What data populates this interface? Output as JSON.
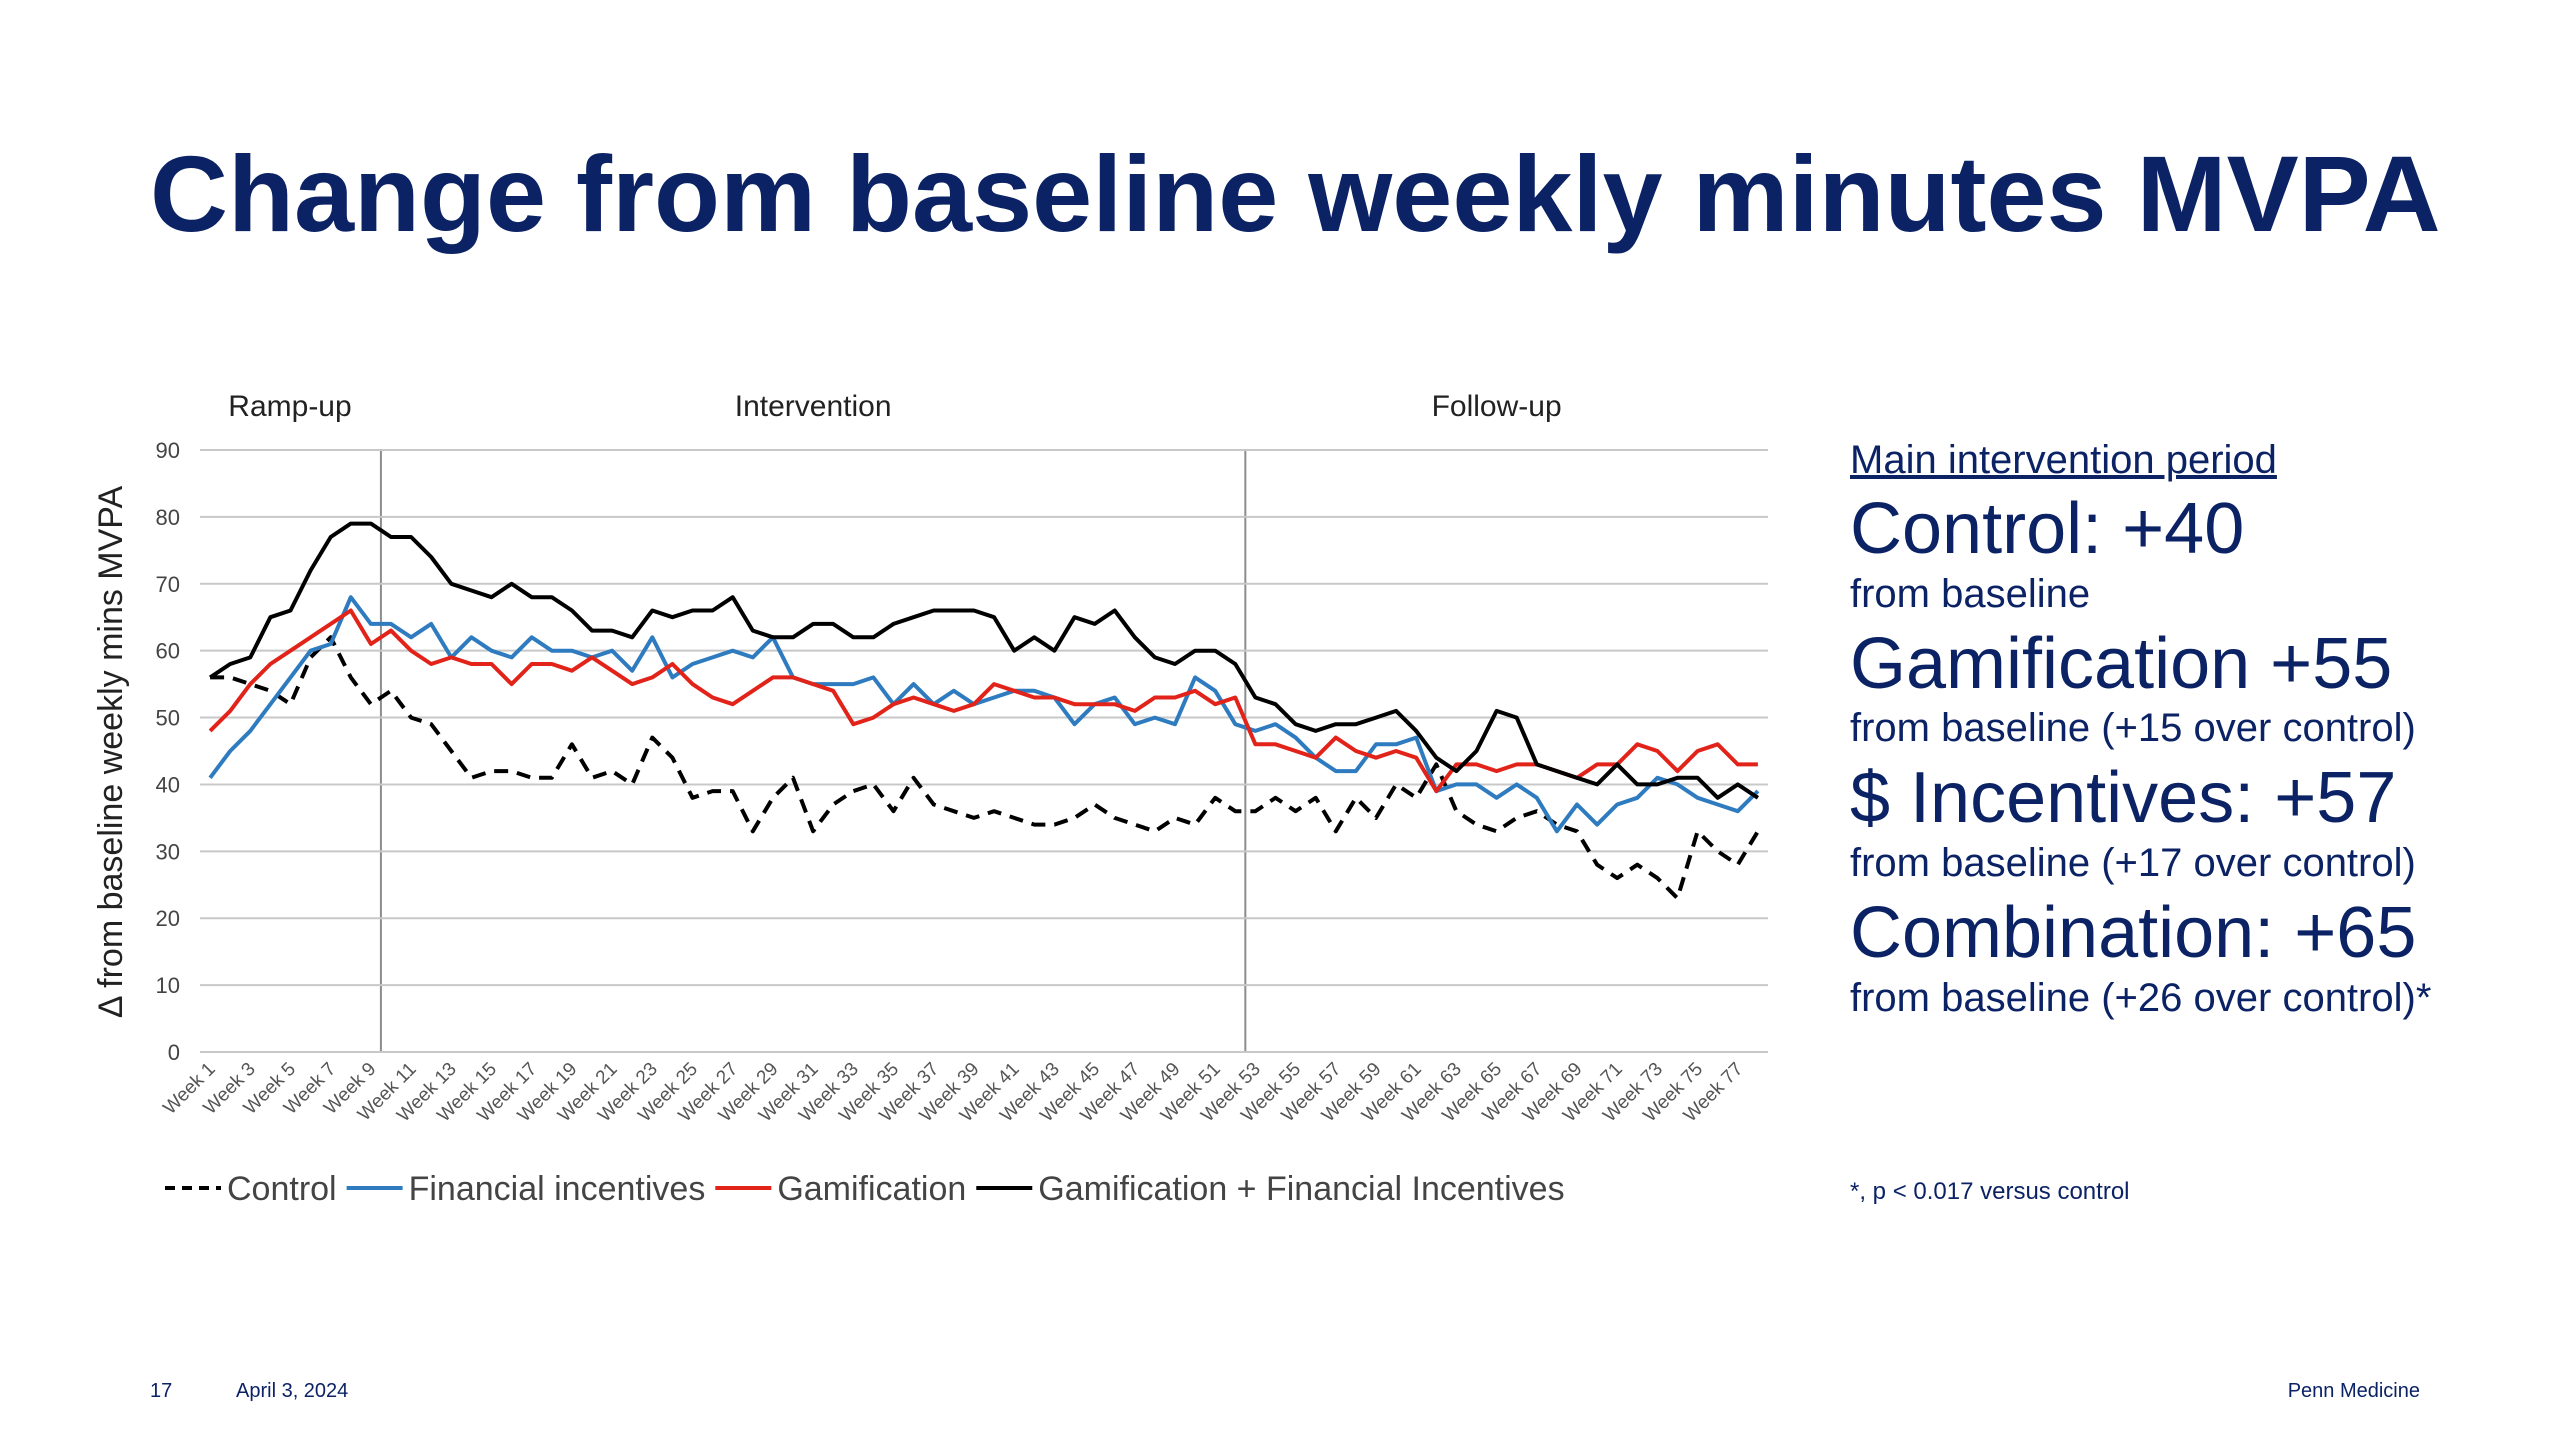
{
  "slide": {
    "title": "Change from baseline weekly minutes MVPA",
    "page_number": "17",
    "date": "April 3, 2024",
    "brand": "Penn Medicine",
    "footnote": "*, p < 0.017 versus control"
  },
  "panel": {
    "heading": "Main intervention period",
    "items": [
      {
        "main": "Control: +40",
        "sub": "from baseline"
      },
      {
        "main": "Gamification +55",
        "sub": "from baseline (+15 over control)"
      },
      {
        "main": "$ Incentives: +57",
        "sub": "from baseline (+17 over control)"
      },
      {
        "main": "Combination: +65",
        "sub": "from baseline (+26 over control)*"
      }
    ]
  },
  "chart_data": {
    "type": "line",
    "title": "",
    "ylabel": "Δ from baseline weekly mins MVPA",
    "xlabel": "",
    "ylim": [
      0,
      90
    ],
    "yticks": [
      0,
      10,
      20,
      30,
      40,
      50,
      60,
      70,
      80,
      90
    ],
    "grid": true,
    "legend_position": "bottom",
    "phases": [
      {
        "label": "Ramp-up",
        "start_week": 1,
        "end_week": 10
      },
      {
        "label": "Intervention",
        "start_week": 10,
        "end_week": 53
      },
      {
        "label": "Follow-up",
        "start_week": 53,
        "end_week": 78
      }
    ],
    "x_tick_labels": [
      "Week 1",
      "Week 3",
      "Week 5",
      "Week 7",
      "Week 9",
      "Week 11",
      "Week 13",
      "Week 15",
      "Week 17",
      "Week 19",
      "Week 21",
      "Week 23",
      "Week 25",
      "Week 27",
      "Week 29",
      "Week 31",
      "Week 33",
      "Week 35",
      "Week 37",
      "Week 39",
      "Week 41",
      "Week 43",
      "Week 45",
      "Week 47",
      "Week 49",
      "Week 51",
      "Week 53",
      "Week 55",
      "Week 57",
      "Week 59",
      "Week 61",
      "Week 63",
      "Week 65",
      "Week 67",
      "Week 69",
      "Week 71",
      "Week 73",
      "Week 75",
      "Week 77"
    ],
    "weeks": [
      1,
      2,
      3,
      4,
      5,
      6,
      7,
      8,
      9,
      10,
      11,
      12,
      13,
      14,
      15,
      16,
      17,
      18,
      19,
      20,
      21,
      22,
      23,
      24,
      25,
      26,
      27,
      28,
      29,
      30,
      31,
      32,
      33,
      34,
      35,
      36,
      37,
      38,
      39,
      40,
      41,
      42,
      43,
      44,
      45,
      46,
      47,
      48,
      49,
      50,
      51,
      52,
      53,
      54,
      55,
      56,
      57,
      58,
      59,
      60,
      61,
      62,
      63,
      64,
      65,
      66,
      67,
      68,
      69,
      70,
      71,
      72,
      73,
      74,
      75,
      76,
      77,
      78
    ],
    "series": [
      {
        "name": "Control",
        "color": "#000000",
        "dash": true,
        "values": [
          56,
          56,
          55,
          54,
          52,
          59,
          62,
          56,
          52,
          54,
          50,
          49,
          45,
          41,
          42,
          42,
          41,
          41,
          46,
          41,
          42,
          40,
          47,
          44,
          38,
          39,
          39,
          33,
          38,
          41,
          33,
          37,
          39,
          40,
          36,
          41,
          37,
          36,
          35,
          36,
          35,
          34,
          34,
          35,
          37,
          35,
          34,
          33,
          35,
          34,
          38,
          36,
          36,
          38,
          36,
          38,
          33,
          38,
          35,
          40,
          38,
          43,
          36,
          34,
          33,
          35,
          36,
          34,
          33,
          28,
          26,
          28,
          26,
          23,
          33,
          30,
          28,
          33
        ]
      },
      {
        "name": "Financial incentives",
        "color": "#2e7bbf",
        "dash": false,
        "values": [
          41,
          45,
          48,
          52,
          56,
          60,
          61,
          68,
          64,
          64,
          62,
          64,
          59,
          62,
          60,
          59,
          62,
          60,
          60,
          59,
          60,
          57,
          62,
          56,
          58,
          59,
          60,
          59,
          62,
          56,
          55,
          55,
          55,
          56,
          52,
          55,
          52,
          54,
          52,
          53,
          54,
          54,
          53,
          49,
          52,
          53,
          49,
          50,
          49,
          56,
          54,
          49,
          48,
          49,
          47,
          44,
          42,
          42,
          46,
          46,
          47,
          39,
          40,
          40,
          38,
          40,
          38,
          33,
          37,
          34,
          37,
          38,
          41,
          40,
          38,
          37,
          36,
          39
        ]
      },
      {
        "name": "Gamification",
        "color": "#e2231a",
        "dash": false,
        "values": [
          48,
          51,
          55,
          58,
          60,
          62,
          64,
          66,
          61,
          63,
          60,
          58,
          59,
          58,
          58,
          55,
          58,
          58,
          57,
          59,
          57,
          55,
          56,
          58,
          55,
          53,
          52,
          54,
          56,
          56,
          55,
          54,
          49,
          50,
          52,
          53,
          52,
          51,
          52,
          55,
          54,
          53,
          53,
          52,
          52,
          52,
          51,
          53,
          53,
          54,
          52,
          53,
          46,
          46,
          45,
          44,
          47,
          45,
          44,
          45,
          44,
          39,
          43,
          43,
          42,
          43,
          43,
          42,
          41,
          43,
          43,
          46,
          45,
          42,
          45,
          46,
          43,
          43
        ]
      },
      {
        "name": "Gamification + Financial Incentives",
        "color": "#000000",
        "dash": false,
        "values": [
          56,
          58,
          59,
          65,
          66,
          72,
          77,
          79,
          79,
          77,
          77,
          74,
          70,
          69,
          68,
          70,
          68,
          68,
          66,
          63,
          63,
          62,
          66,
          65,
          66,
          66,
          68,
          63,
          62,
          62,
          64,
          64,
          62,
          62,
          64,
          65,
          66,
          66,
          66,
          65,
          60,
          62,
          60,
          65,
          64,
          66,
          62,
          59,
          58,
          60,
          60,
          58,
          53,
          52,
          49,
          48,
          49,
          49,
          50,
          51,
          48,
          44,
          42,
          45,
          51,
          50,
          43,
          42,
          41,
          40,
          43,
          40,
          40,
          41,
          41,
          38,
          40,
          38
        ]
      }
    ]
  }
}
